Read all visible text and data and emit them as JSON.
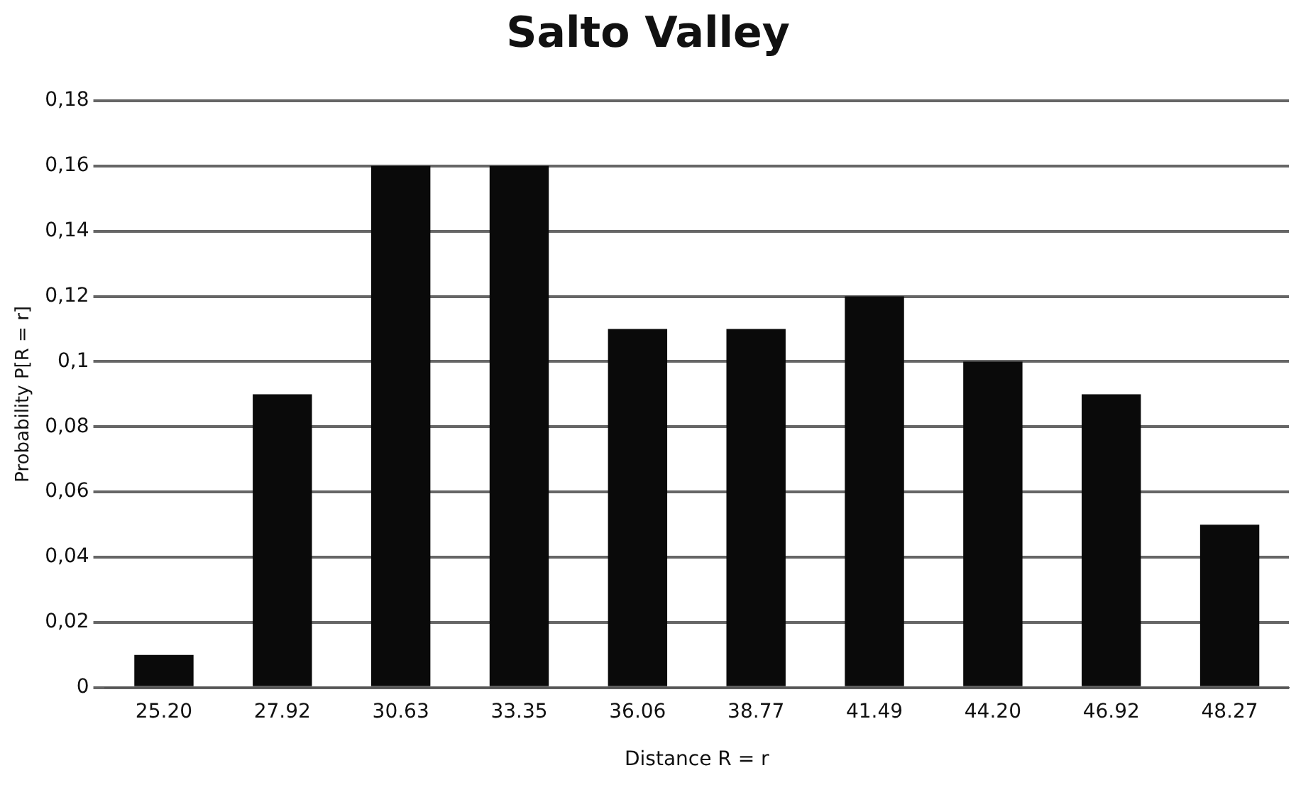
{
  "chart_data": {
    "type": "bar",
    "title": "Salto Valley",
    "xlabel": "Distance R = r",
    "ylabel": "Probability P[R = r]",
    "categories": [
      "25.20",
      "27.92",
      "30.63",
      "33.35",
      "36.06",
      "38.77",
      "41.49",
      "44.20",
      "46.92",
      "48.27"
    ],
    "values": [
      0.01,
      0.09,
      0.16,
      0.16,
      0.11,
      0.11,
      0.12,
      0.1,
      0.09,
      0.05
    ],
    "color": "#0a0a0a",
    "ylim": [
      0,
      0.18
    ],
    "yticks": [
      0,
      {
        "value": 0.02,
        "label": "0,02"
      },
      {
        "value": 0.04,
        "label": "0,04"
      },
      {
        "value": 0.06,
        "label": "0,06"
      },
      {
        "value": 0.08,
        "label": "0,08"
      },
      {
        "value": 0.1,
        "label": "0,1"
      },
      {
        "value": 0.12,
        "label": "0,12"
      },
      {
        "value": 0.14,
        "label": "0,14"
      },
      {
        "value": 0.16,
        "label": "0,16"
      },
      {
        "value": 0.18,
        "label": "0,18"
      }
    ],
    "grid": "y"
  }
}
